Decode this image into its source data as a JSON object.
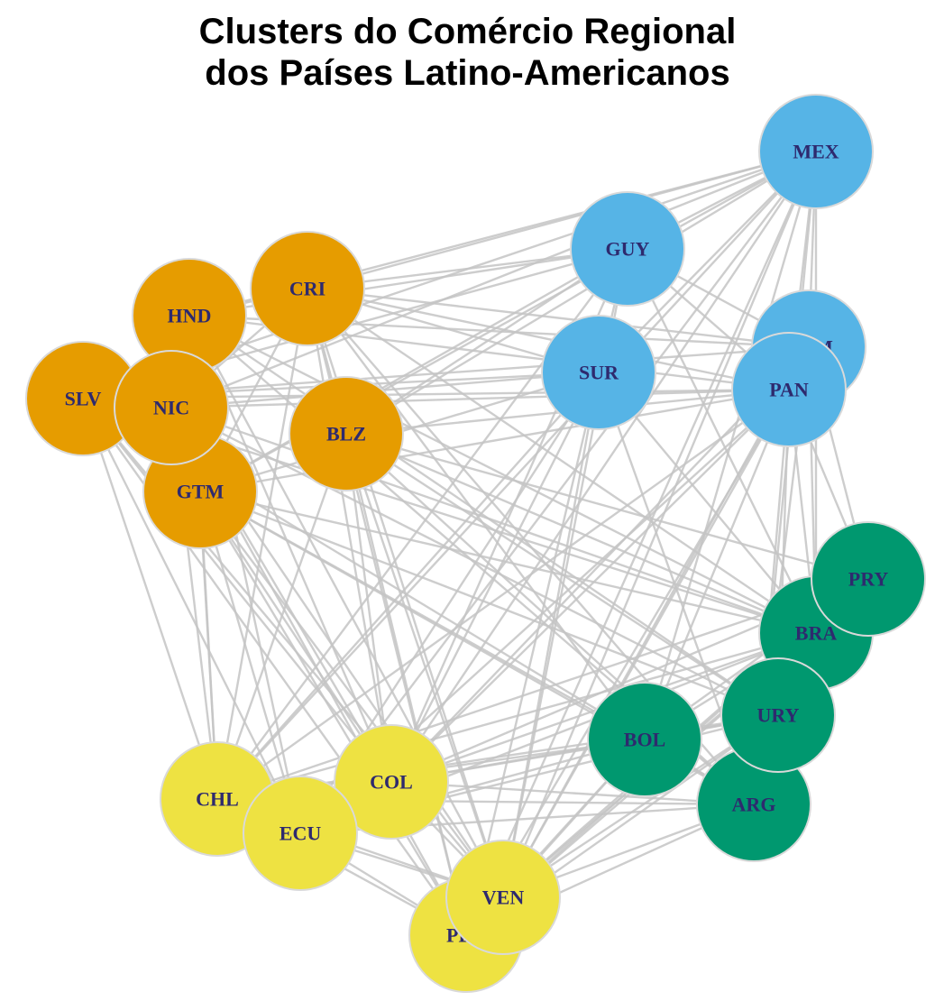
{
  "title": {
    "line1": "Clusters do Comércio Regional",
    "line2": "dos Países Latino-Americanos"
  },
  "clusters": {
    "orange": {
      "color": "#E69C00"
    },
    "blue": {
      "color": "#56B4E6"
    },
    "green": {
      "color": "#00986F"
    },
    "yellow": {
      "color": "#EEE242"
    }
  },
  "nodes": [
    {
      "id": "MEX",
      "label": "MEX",
      "cluster": "blue"
    },
    {
      "id": "GUY",
      "label": "GUY",
      "cluster": "blue"
    },
    {
      "id": "DOM",
      "label": "DOM",
      "cluster": "blue"
    },
    {
      "id": "SUR",
      "label": "SUR",
      "cluster": "blue"
    },
    {
      "id": "PAN",
      "label": "PAN",
      "cluster": "blue"
    },
    {
      "id": "CRI",
      "label": "CRI",
      "cluster": "orange"
    },
    {
      "id": "HND",
      "label": "HND",
      "cluster": "orange"
    },
    {
      "id": "SLV",
      "label": "SLV",
      "cluster": "orange"
    },
    {
      "id": "GTM",
      "label": "GTM",
      "cluster": "orange"
    },
    {
      "id": "NIC",
      "label": "NIC",
      "cluster": "orange"
    },
    {
      "id": "BLZ",
      "label": "BLZ",
      "cluster": "orange"
    },
    {
      "id": "BRA",
      "label": "BRA",
      "cluster": "green"
    },
    {
      "id": "PRY",
      "label": "PRY",
      "cluster": "green"
    },
    {
      "id": "ARG",
      "label": "ARG",
      "cluster": "green"
    },
    {
      "id": "URY",
      "label": "URY",
      "cluster": "green"
    },
    {
      "id": "BOL",
      "label": "BOL",
      "cluster": "green"
    },
    {
      "id": "CHL",
      "label": "CHL",
      "cluster": "yellow"
    },
    {
      "id": "COL",
      "label": "COL",
      "cluster": "yellow"
    },
    {
      "id": "ECU",
      "label": "ECU",
      "cluster": "yellow"
    },
    {
      "id": "PER",
      "label": "PER",
      "cluster": "yellow"
    },
    {
      "id": "VEN",
      "label": "VEN",
      "cluster": "yellow"
    }
  ],
  "edges": [
    [
      "MEX",
      "GUY"
    ],
    [
      "MEX",
      "SUR"
    ],
    [
      "MEX",
      "DOM"
    ],
    [
      "MEX",
      "PAN"
    ],
    [
      "MEX",
      "CRI"
    ],
    [
      "MEX",
      "HND"
    ],
    [
      "MEX",
      "SLV"
    ],
    [
      "MEX",
      "NIC"
    ],
    [
      "MEX",
      "GTM"
    ],
    [
      "MEX",
      "BLZ"
    ],
    [
      "MEX",
      "BRA"
    ],
    [
      "MEX",
      "ARG"
    ],
    [
      "MEX",
      "CHL"
    ],
    [
      "MEX",
      "COL"
    ],
    [
      "MEX",
      "PER"
    ],
    [
      "MEX",
      "VEN"
    ],
    [
      "MEX",
      "ECU"
    ],
    [
      "MEX",
      "BOL"
    ],
    [
      "GUY",
      "CRI"
    ],
    [
      "GUY",
      "HND"
    ],
    [
      "GUY",
      "SLV"
    ],
    [
      "GUY",
      "BLZ"
    ],
    [
      "GUY",
      "GTM"
    ],
    [
      "GUY",
      "VEN"
    ],
    [
      "GUY",
      "BRA"
    ],
    [
      "GUY",
      "DOM"
    ],
    [
      "GUY",
      "SUR"
    ],
    [
      "GUY",
      "PAN"
    ],
    [
      "GUY",
      "COL"
    ],
    [
      "GUY",
      "CHL"
    ],
    [
      "SUR",
      "CRI"
    ],
    [
      "SUR",
      "NIC"
    ],
    [
      "SUR",
      "GTM"
    ],
    [
      "SUR",
      "VEN"
    ],
    [
      "SUR",
      "BRA"
    ],
    [
      "SUR",
      "PER"
    ],
    [
      "SUR",
      "COL"
    ],
    [
      "SUR",
      "CHL"
    ],
    [
      "SUR",
      "ECU"
    ],
    [
      "SUR",
      "ARG"
    ],
    [
      "SUR",
      "SLV"
    ],
    [
      "DOM",
      "CRI"
    ],
    [
      "DOM",
      "HND"
    ],
    [
      "DOM",
      "VEN"
    ],
    [
      "DOM",
      "BRA"
    ],
    [
      "DOM",
      "PRY"
    ],
    [
      "DOM",
      "COL"
    ],
    [
      "DOM",
      "ARG"
    ],
    [
      "DOM",
      "SLV"
    ],
    [
      "PAN",
      "CRI"
    ],
    [
      "PAN",
      "HND"
    ],
    [
      "PAN",
      "SLV"
    ],
    [
      "PAN",
      "GTM"
    ],
    [
      "PAN",
      "NIC"
    ],
    [
      "PAN",
      "BLZ"
    ],
    [
      "PAN",
      "COL"
    ],
    [
      "PAN",
      "VEN"
    ],
    [
      "PAN",
      "ECU"
    ],
    [
      "PAN",
      "PER"
    ],
    [
      "PAN",
      "CHL"
    ],
    [
      "PAN",
      "BRA"
    ],
    [
      "PAN",
      "ARG"
    ],
    [
      "PAN",
      "BOL"
    ],
    [
      "PAN",
      "URY"
    ],
    [
      "PAN",
      "PRY"
    ],
    [
      "CRI",
      "BLZ"
    ],
    [
      "CRI",
      "HND"
    ],
    [
      "CRI",
      "NIC"
    ],
    [
      "CRI",
      "GTM"
    ],
    [
      "CRI",
      "COL"
    ],
    [
      "CRI",
      "CHL"
    ],
    [
      "CRI",
      "PER"
    ],
    [
      "CRI",
      "BRA"
    ],
    [
      "CRI",
      "ARG"
    ],
    [
      "CRI",
      "VEN"
    ],
    [
      "CRI",
      "BOL"
    ],
    [
      "HND",
      "COL"
    ],
    [
      "HND",
      "CHL"
    ],
    [
      "HND",
      "ECU"
    ],
    [
      "HND",
      "BRA"
    ],
    [
      "HND",
      "ARG"
    ],
    [
      "HND",
      "VEN"
    ],
    [
      "HND",
      "URY"
    ],
    [
      "SLV",
      "CHL"
    ],
    [
      "SLV",
      "ECU"
    ],
    [
      "SLV",
      "COL"
    ],
    [
      "SLV",
      "PER"
    ],
    [
      "SLV",
      "BRA"
    ],
    [
      "SLV",
      "ARG"
    ],
    [
      "SLV",
      "VEN"
    ],
    [
      "NIC",
      "COL"
    ],
    [
      "NIC",
      "CHL"
    ],
    [
      "NIC",
      "VEN"
    ],
    [
      "NIC",
      "BRA"
    ],
    [
      "NIC",
      "PER"
    ],
    [
      "NIC",
      "URY"
    ],
    [
      "GTM",
      "CHL"
    ],
    [
      "GTM",
      "COL"
    ],
    [
      "GTM",
      "ECU"
    ],
    [
      "GTM",
      "PER"
    ],
    [
      "GTM",
      "VEN"
    ],
    [
      "GTM",
      "BRA"
    ],
    [
      "GTM",
      "ARG"
    ],
    [
      "GTM",
      "BOL"
    ],
    [
      "GTM",
      "URY"
    ],
    [
      "BLZ",
      "COL"
    ],
    [
      "BLZ",
      "CHL"
    ],
    [
      "BLZ",
      "PER"
    ],
    [
      "BLZ",
      "VEN"
    ],
    [
      "BLZ",
      "BRA"
    ],
    [
      "BLZ",
      "ARG"
    ],
    [
      "BLZ",
      "URY"
    ],
    [
      "BLZ",
      "PRY"
    ],
    [
      "CHL",
      "BRA"
    ],
    [
      "CHL",
      "ARG"
    ],
    [
      "CHL",
      "BOL"
    ],
    [
      "CHL",
      "URY"
    ],
    [
      "CHL",
      "PRY"
    ],
    [
      "CHL",
      "VEN"
    ],
    [
      "CHL",
      "PER"
    ],
    [
      "COL",
      "BRA"
    ],
    [
      "COL",
      "ARG"
    ],
    [
      "COL",
      "BOL"
    ],
    [
      "COL",
      "URY"
    ],
    [
      "COL",
      "PRY"
    ],
    [
      "COL",
      "VEN"
    ],
    [
      "ECU",
      "BRA"
    ],
    [
      "ECU",
      "ARG"
    ],
    [
      "ECU",
      "BOL"
    ],
    [
      "ECU",
      "URY"
    ],
    [
      "ECU",
      "VEN"
    ],
    [
      "ECU",
      "PER"
    ],
    [
      "PER",
      "BRA"
    ],
    [
      "PER",
      "ARG"
    ],
    [
      "PER",
      "BOL"
    ],
    [
      "PER",
      "URY"
    ],
    [
      "PER",
      "PRY"
    ],
    [
      "VEN",
      "BRA"
    ],
    [
      "VEN",
      "ARG"
    ],
    [
      "VEN",
      "BOL"
    ],
    [
      "VEN",
      "URY"
    ],
    [
      "VEN",
      "PRY"
    ],
    [
      "BOL",
      "ARG"
    ],
    [
      "BOL",
      "BRA"
    ],
    [
      "BOL",
      "URY"
    ],
    [
      "BOL",
      "PRY"
    ],
    [
      "BRA",
      "ARG"
    ],
    [
      "BRA",
      "PRY"
    ],
    [
      "BRA",
      "URY"
    ],
    [
      "URY",
      "ARG"
    ],
    [
      "PRY",
      "ARG"
    ]
  ]
}
